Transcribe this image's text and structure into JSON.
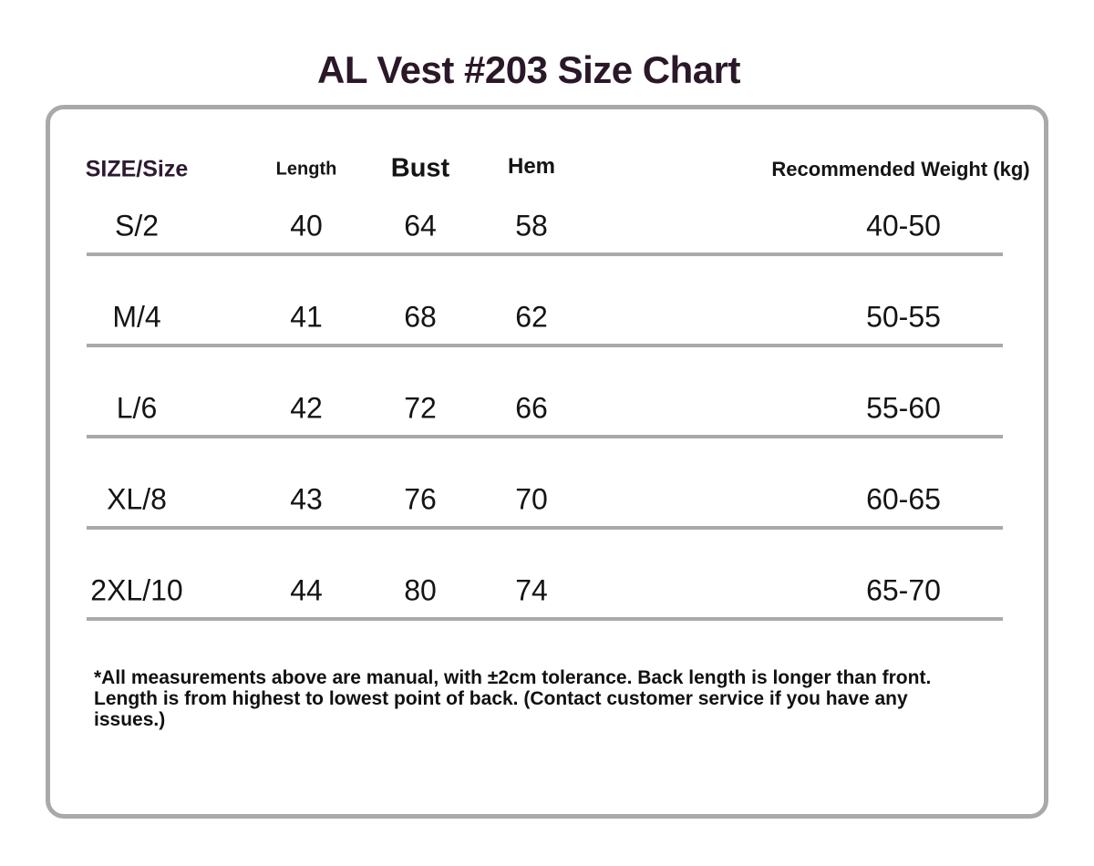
{
  "title": "AL Vest #203 Size Chart",
  "colors": {
    "title_text": "#2a1829",
    "size_header_text": "#2d1a30",
    "body_text": "#141414",
    "border_and_lines": "#a9a9a9",
    "background": "#ffffff"
  },
  "table": {
    "headers": {
      "size": "SIZE/Size",
      "length": "Length",
      "bust": "Bust",
      "hem": "Hem",
      "weight": "Recommended Weight (kg)"
    },
    "rows": [
      {
        "size": "S/2",
        "length": "40",
        "bust": "64",
        "hem": "58",
        "weight": "40-50"
      },
      {
        "size": "M/4",
        "length": "41",
        "bust": "68",
        "hem": "62",
        "weight": "50-55"
      },
      {
        "size": "L/6",
        "length": "42",
        "bust": "72",
        "hem": "66",
        "weight": "55-60"
      },
      {
        "size": "XL/8",
        "length": "43",
        "bust": "76",
        "hem": "70",
        "weight": "60-65"
      },
      {
        "size": "2XL/10",
        "length": "44",
        "bust": "80",
        "hem": "74",
        "weight": "65-70"
      }
    ]
  },
  "footnote": {
    "lines": [
      "*All measurements above are manual, with ±2cm tolerance. Back length is longer than front.",
      "Length is from highest to lowest point of back. (Contact customer service if you have any",
      "issues.)"
    ]
  }
}
